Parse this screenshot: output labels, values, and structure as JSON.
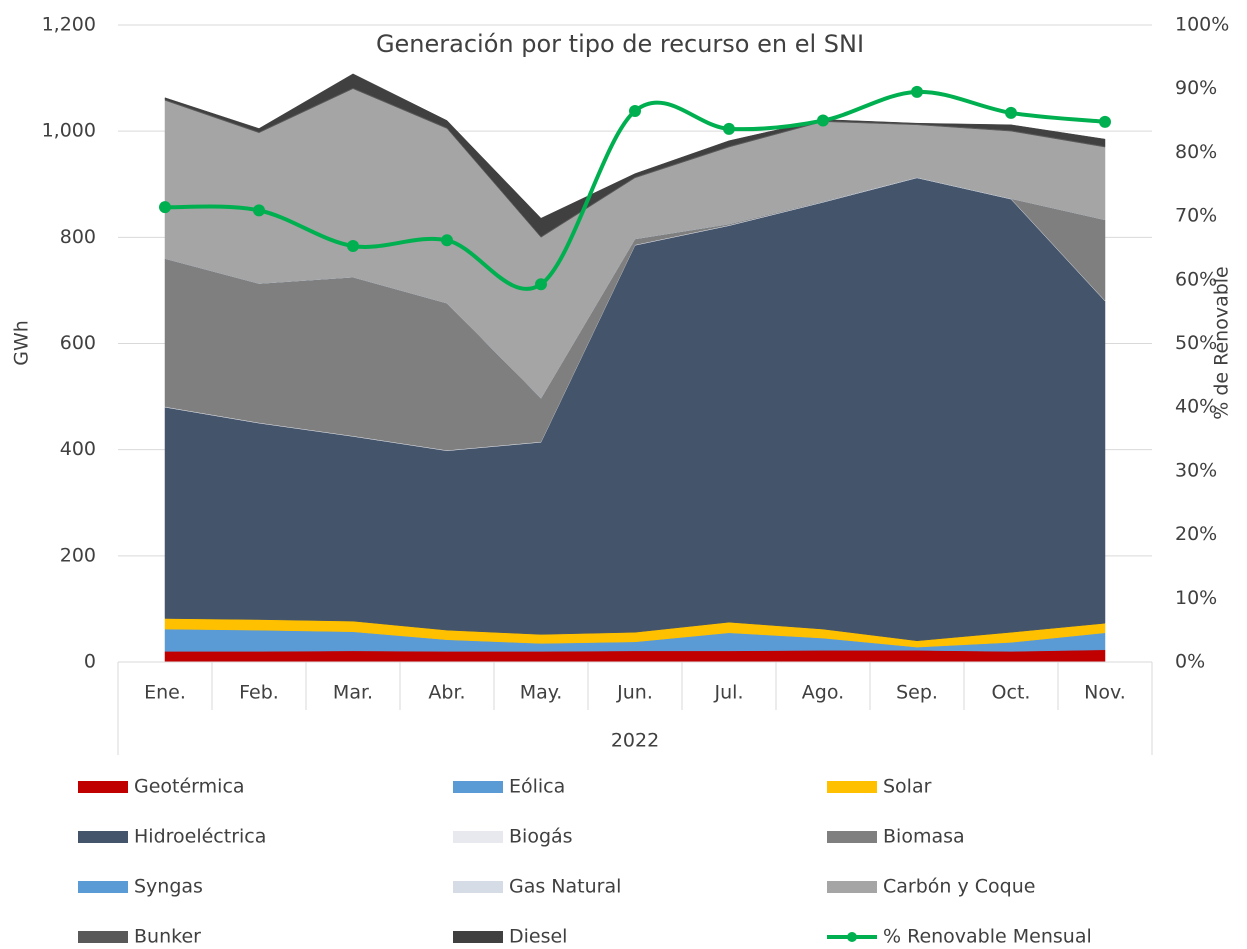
{
  "chart_data": {
    "type": "stacked_area_line",
    "title": "Generación por tipo de recurso en el  SNI",
    "x_group_label": "2022",
    "ylabel": "GWh",
    "y2label": "% de Renovable",
    "categories": [
      "Ene.",
      "Feb.",
      "Mar.",
      "Abr.",
      "May.",
      "Jun.",
      "Jul.",
      "Ago.",
      "Sep.",
      "Oct.",
      "Nov."
    ],
    "ylim": [
      0,
      1200
    ],
    "yticks": [
      0,
      200,
      400,
      600,
      800,
      {
        "value": 1000,
        "label": "1,000"
      },
      {
        "value": 1200,
        "label": "1,200"
      }
    ],
    "y2lim": [
      0,
      100
    ],
    "y2ticks": [
      {
        "value": 0,
        "label": "0%"
      },
      {
        "value": 10,
        "label": "10%"
      },
      {
        "value": 20,
        "label": "20%"
      },
      {
        "value": 30,
        "label": "30%"
      },
      {
        "value": 40,
        "label": "40%"
      },
      {
        "value": 50,
        "label": "50%"
      },
      {
        "value": 60,
        "label": "60%"
      },
      {
        "value": 70,
        "label": "70%"
      },
      {
        "value": 80,
        "label": "80%"
      },
      {
        "value": 90,
        "label": "90%"
      },
      {
        "value": 100,
        "label": "100%"
      }
    ],
    "grid": true,
    "series": [
      {
        "name": "Geotérmica",
        "color": "#c00000",
        "values": [
          20,
          20,
          21,
          20,
          20,
          21,
          21,
          22,
          22,
          20,
          23
        ]
      },
      {
        "name": "Eólica",
        "color": "#5b9bd5",
        "values": [
          42,
          40,
          36,
          22,
          15,
          17,
          34,
          23,
          6,
          17,
          32
        ]
      },
      {
        "name": "Solar",
        "color": "#ffc000",
        "values": [
          20,
          20,
          20,
          18,
          17,
          18,
          20,
          17,
          12,
          19,
          18
        ]
      },
      {
        "name": "Hidroeléctrica",
        "color": "#44546a",
        "values": [
          398,
          370,
          348,
          338,
          362,
          729,
          747,
          804,
          872,
          816,
          607
        ]
      },
      {
        "name": "Biogás",
        "color": "#e7e9ef",
        "values": [
          1,
          1,
          1,
          1,
          1,
          1,
          1,
          1,
          1,
          1,
          1
        ]
      },
      {
        "name": "Biomasa",
        "color": "#7f7f7f",
        "values": [
          279,
          262,
          299,
          277,
          82,
          11,
          2,
          1,
          0,
          0,
          152
        ]
      },
      {
        "name": "Syngas",
        "color": "#5b9bd5",
        "values": [
          0,
          0,
          0,
          0,
          0,
          0,
          0,
          0,
          0,
          0,
          0
        ]
      },
      {
        "name": "Gas Natural",
        "color": "#d6dce5",
        "values": [
          0,
          0,
          0,
          0,
          0,
          0,
          0,
          0,
          0,
          0,
          0
        ]
      },
      {
        "name": "Carbón y Coque",
        "color": "#a5a5a5",
        "values": [
          298,
          284,
          355,
          329,
          303,
          115,
          145,
          150,
          99,
          127,
          137
        ]
      },
      {
        "name": "Bunker",
        "color": "#595959",
        "values": [
          2,
          2,
          2,
          2,
          2,
          2,
          2,
          2,
          2,
          2,
          2
        ]
      },
      {
        "name": "Diesel",
        "color": "#404040",
        "values": [
          3,
          6,
          26,
          13,
          34,
          6,
          10,
          2,
          1,
          10,
          13
        ]
      },
      {
        "name": "% Renovable Mensual",
        "color": "#00b050",
        "axis": "y2",
        "type": "line",
        "values": [
          71.4,
          70.9,
          65.3,
          66.2,
          59.3,
          86.5,
          83.7,
          85.0,
          89.5,
          86.2,
          84.8
        ]
      }
    ]
  }
}
